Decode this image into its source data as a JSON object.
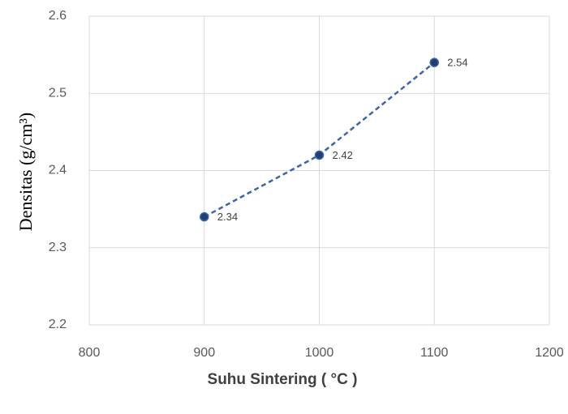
{
  "chart_data": {
    "type": "line",
    "x_label": "Suhu Sintering ( °C )",
    "y_label": "Densitas (g/cm³)",
    "x": [
      900,
      1000,
      1100
    ],
    "series": [
      {
        "color": "#3a66a6",
        "values": [
          2.34,
          2.42,
          2.54
        ]
      }
    ],
    "xlim": [
      800,
      1200
    ],
    "xticks": [
      800,
      900,
      1000,
      1100,
      1200
    ],
    "ylim": [
      2.2,
      2.6
    ],
    "yticks": [
      2.2,
      2.3,
      2.4,
      2.5,
      2.6
    ],
    "grid": true
  }
}
